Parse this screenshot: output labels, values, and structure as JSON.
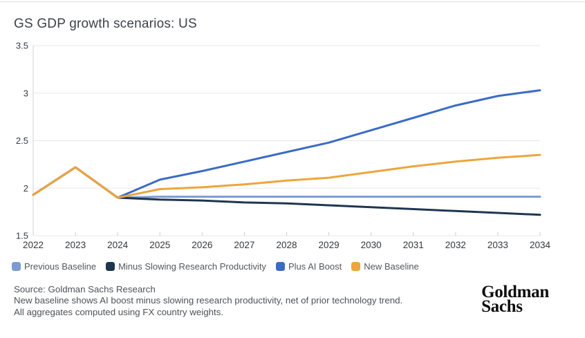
{
  "title": "GS GDP growth scenarios: US",
  "chart_data": {
    "type": "line",
    "x": [
      2022,
      2023,
      2024,
      2025,
      2026,
      2027,
      2028,
      2029,
      2030,
      2031,
      2032,
      2033,
      2034
    ],
    "series": [
      {
        "name": "Previous Baseline",
        "color": "#7b9bd2",
        "values": [
          1.93,
          2.22,
          1.9,
          1.91,
          1.91,
          1.91,
          1.91,
          1.91,
          1.91,
          1.91,
          1.91,
          1.91,
          1.91
        ]
      },
      {
        "name": "Minus Slowing Research Productivity",
        "color": "#1f3550",
        "values": [
          1.93,
          2.22,
          1.9,
          1.88,
          1.87,
          1.85,
          1.84,
          1.82,
          1.8,
          1.78,
          1.76,
          1.74,
          1.72
        ]
      },
      {
        "name": "Plus AI Boost",
        "color": "#3a6bc5",
        "values": [
          1.93,
          2.22,
          1.9,
          2.09,
          2.18,
          2.28,
          2.38,
          2.48,
          2.61,
          2.74,
          2.87,
          2.97,
          3.03
        ]
      },
      {
        "name": "New Baseline",
        "color": "#eca63b",
        "values": [
          1.93,
          2.22,
          1.9,
          1.99,
          2.01,
          2.04,
          2.08,
          2.11,
          2.17,
          2.23,
          2.28,
          2.32,
          2.35
        ]
      }
    ],
    "title": "GS GDP growth scenarios: US",
    "xlabel": "",
    "ylabel": "",
    "ylim": [
      1.5,
      3.5
    ],
    "yticks": [
      1.5,
      2,
      2.5,
      3,
      3.5
    ],
    "grid": true,
    "legend_position": "bottom-left",
    "axis_colors": {
      "gridline": "#e7e7e7",
      "spine": "#d0d0d0",
      "tick": "#cfcfcf",
      "tick_label": "#383c40"
    }
  },
  "footer": {
    "source": "Source: Goldman Sachs Research",
    "note1": "New baseline shows AI boost minus slowing research productivity, net of prior technology trend.",
    "note2": "All aggregates computed using FX country weights.",
    "logo_line1": "Goldman",
    "logo_line2": "Sachs"
  }
}
